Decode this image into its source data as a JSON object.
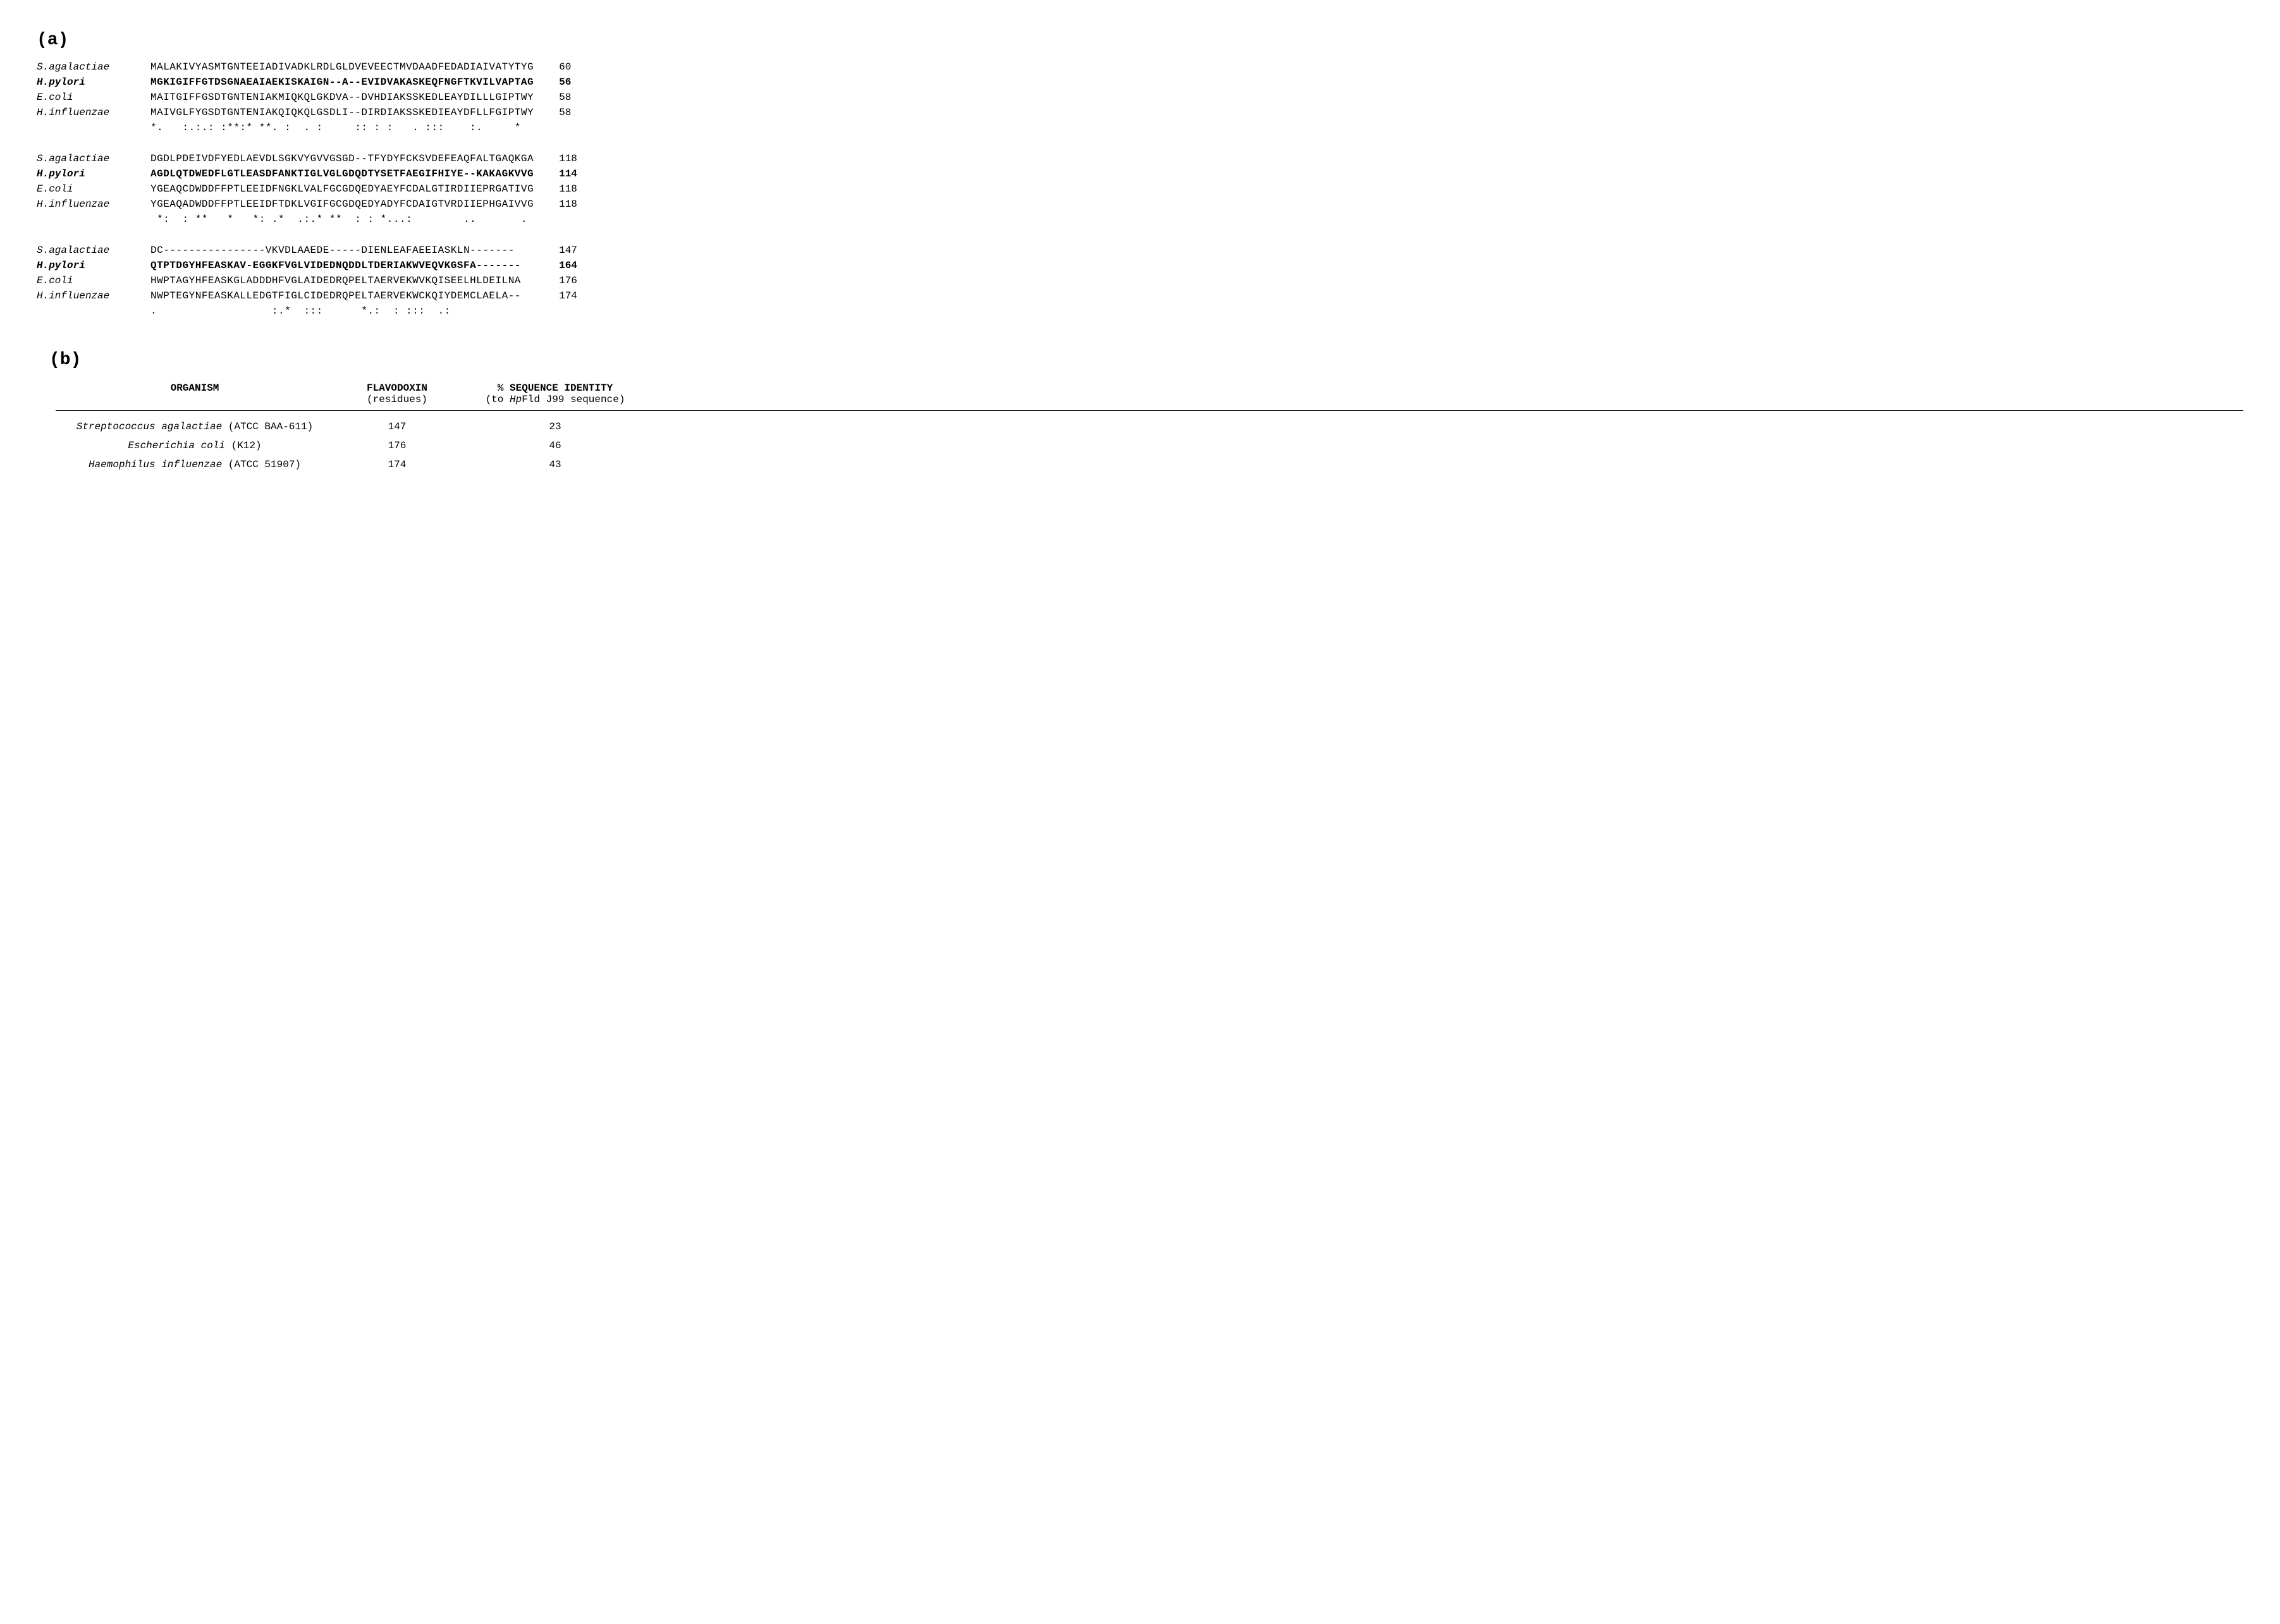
{
  "panel_a": {
    "label": "(a)",
    "blocks": [
      {
        "rows": [
          {
            "species": "S.agalactiae",
            "seq": "MALAKIVYASMTGNTEEIADIVADKLRDLGLDVEVEECTMVDAADFEDADIAIVATYTYG",
            "pos": "60",
            "bold": false
          },
          {
            "species": "H.pylori",
            "seq": "MGKIGIFFGTDSGNAEAIAEKISKAIGN--A--EVIDVAKASKEQFNGFTKVILVAPTAG",
            "pos": "56",
            "bold": true
          },
          {
            "species": "E.coli",
            "seq": "MAITGIFFGSDTGNTENIAKMIQKQLGKDVA--DVHDIAKSSKEDLEAYDILLLGIPTWY",
            "pos": "58",
            "bold": false
          },
          {
            "species": "H.influenzae",
            "seq": "MAIVGLFYGSDTGNTENIAKQIQKQLGSDLI--DIRDIAKSSKEDIEAYDFLLFGIPTWY",
            "pos": "58",
            "bold": false
          }
        ],
        "consensus": "*.   :.:.: :**:* **. :  . :     :: : :   . :::    :.     *  "
      },
      {
        "rows": [
          {
            "species": "S.agalactiae",
            "seq": "DGDLPDEIVDFYEDLAEVDLSGKVYGVVGSGD--TFYDYFCKSVDEFEAQFALTGAQKGA",
            "pos": "118",
            "bold": false
          },
          {
            "species": "H.pylori",
            "seq": "AGDLQTDWEDFLGTLEASDFANKTIGLVGLGDQDTYSETFAEGIFHIYE--KAKAGKVVG",
            "pos": "114",
            "bold": true
          },
          {
            "species": "E.coli",
            "seq": "YGEAQCDWDDFFPTLEEIDFNGKLVALFGCGDQEDYAEYFCDALGTIRDIIEPRGATIVG",
            "pos": "118",
            "bold": false
          },
          {
            "species": "H.influenzae",
            "seq": "YGEAQADWDDFFPTLEEIDFTDKLVGIFGCGDQEDYADYFCDAIGTVRDIIEPHGAIVVG",
            "pos": "118",
            "bold": false
          }
        ],
        "consensus": " *:  : **   *   *: .*  .:.* **  : : *...:        ..       . "
      },
      {
        "rows": [
          {
            "species": "S.agalactiae",
            "seq": "DC----------------VKVDLAAEDE-----DIENLEAFAEEIASKLN-------   ",
            "pos": "147",
            "bold": false
          },
          {
            "species": "H.pylori",
            "seq": "QTPTDGYHFEASKAV-EGGKFVGLVIDEDNQDDLTDERIAKWVEQVKGSFA-------  ",
            "pos": "164",
            "bold": true
          },
          {
            "species": "E.coli",
            "seq": "HWPTAGYHFEASKGLADDDHFVGLAIDEDRQPELTAERVEKWVKQISEELHLDEILNA  ",
            "pos": "176",
            "bold": false
          },
          {
            "species": "H.influenzae",
            "seq": "NWPTEGYNFEASKALLEDGTFIGLCIDEDRQPELTAERVEKWCKQIYDEMCLAELA--  ",
            "pos": "174",
            "bold": false
          }
        ],
        "consensus": ".                  :.*  :::      *.:  : :::  .:             "
      }
    ]
  },
  "panel_b": {
    "label": "(b)",
    "headers": {
      "organism": "ORGANISM",
      "flavodoxin": "FLAVODOXIN",
      "flavodoxin_sub": "(residues)",
      "identity": "% SEQUENCE IDENTITY",
      "identity_sub_prefix": "(to ",
      "identity_sub_italic": "Hp",
      "identity_sub_suffix": "Fld J99 sequence)"
    },
    "rows": [
      {
        "organism_italic": "Streptococcus agalactiae",
        "organism_rest": " (ATCC BAA-611)",
        "residues": "147",
        "identity": "23"
      },
      {
        "organism_italic": "Escherichia coli",
        "organism_rest": " (K12)",
        "residues": "176",
        "identity": "46"
      },
      {
        "organism_italic": "Haemophilus influenzae",
        "organism_rest": " (ATCC 51907)",
        "residues": "174",
        "identity": "43"
      }
    ]
  }
}
